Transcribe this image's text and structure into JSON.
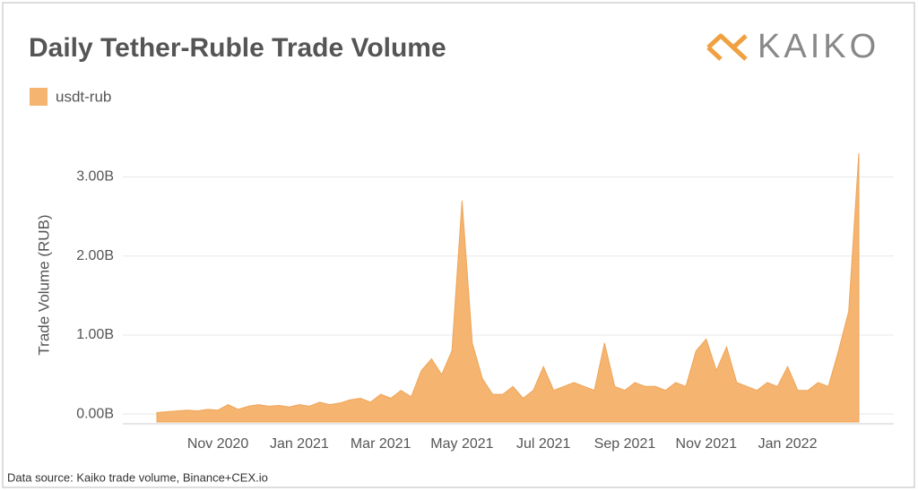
{
  "chart_data": {
    "type": "area",
    "title": "Daily Tether-Ruble Trade Volume",
    "logo": "KAIKO",
    "y_label": "Trade Volume (RUB)",
    "source": "Data source: Kaiko trade volume, Binance+CEX.io",
    "categories": [
      null,
      null,
      null,
      null,
      null,
      null,
      "Nov 2020",
      null,
      null,
      null,
      null,
      null,
      null,
      null,
      "Jan 2021",
      null,
      null,
      null,
      null,
      null,
      null,
      null,
      "Mar 2021",
      null,
      null,
      null,
      null,
      null,
      null,
      null,
      "May 2021",
      null,
      null,
      null,
      null,
      null,
      null,
      null,
      "Jul 2021",
      null,
      null,
      null,
      null,
      null,
      null,
      null,
      "Sep 2021",
      null,
      null,
      null,
      null,
      null,
      null,
      null,
      "Nov 2021",
      null,
      null,
      null,
      null,
      null,
      null,
      null,
      "Jan 2022",
      null,
      null,
      null,
      null,
      null,
      null,
      null
    ],
    "series": [
      {
        "name": "usdt-rub",
        "color": "#f5b46f",
        "values": [
          0.02,
          0.03,
          0.04,
          0.05,
          0.04,
          0.06,
          0.05,
          0.12,
          0.06,
          0.1,
          0.12,
          0.1,
          0.11,
          0.09,
          0.12,
          0.1,
          0.15,
          0.12,
          0.14,
          0.18,
          0.2,
          0.15,
          0.25,
          0.2,
          0.3,
          0.22,
          0.55,
          0.7,
          0.5,
          0.8,
          2.7,
          0.9,
          0.45,
          0.25,
          0.25,
          0.35,
          0.2,
          0.3,
          0.6,
          0.3,
          0.35,
          0.4,
          0.35,
          0.3,
          0.9,
          0.35,
          0.3,
          0.4,
          0.35,
          0.35,
          0.3,
          0.4,
          0.35,
          0.8,
          0.95,
          0.55,
          0.85,
          0.4,
          0.35,
          0.3,
          0.4,
          0.35,
          0.6,
          0.3,
          0.3,
          0.4,
          0.35,
          0.8,
          1.3,
          3.3
        ]
      }
    ],
    "ylim": [
      -0.1,
      3.3
    ],
    "yticks": [
      {
        "value": 0,
        "label": "0.00B"
      },
      {
        "value": 1,
        "label": "1.00B"
      },
      {
        "value": 2,
        "label": "2.00B"
      },
      {
        "value": 3,
        "label": "3.00B"
      }
    ],
    "grid": true
  }
}
